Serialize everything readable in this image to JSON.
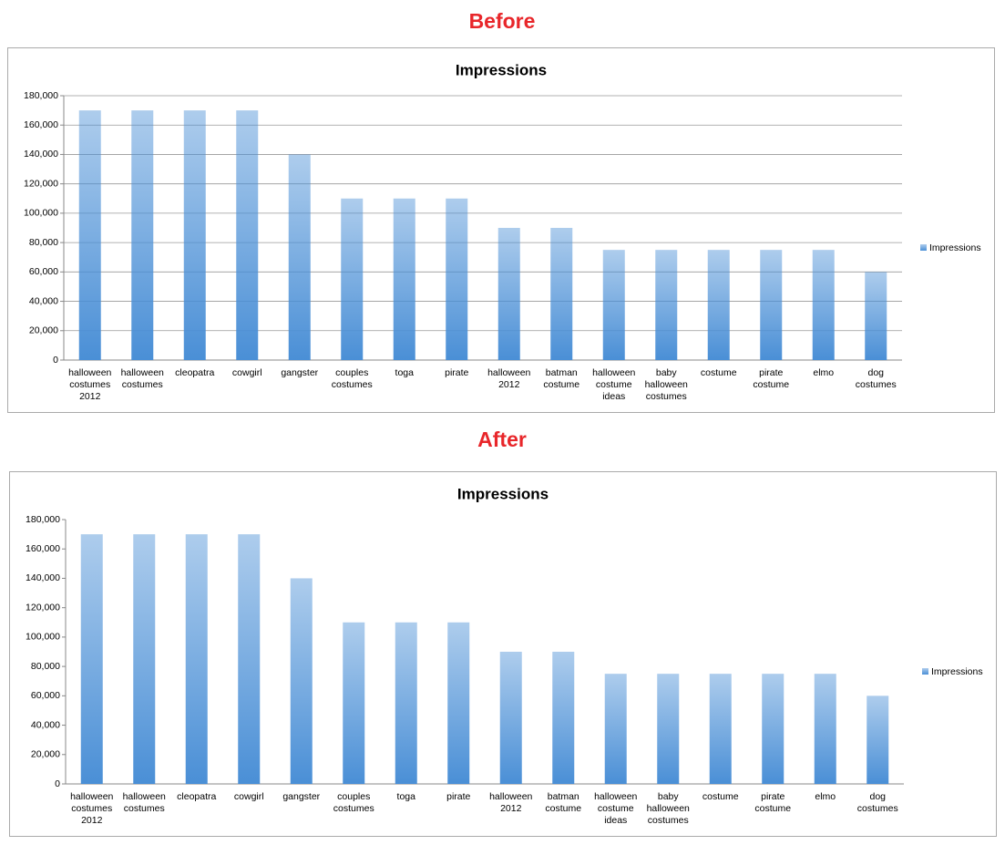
{
  "chart_data": [
    {
      "type": "bar",
      "heading": "Before",
      "title": "Impressions",
      "categories": [
        "halloween costumes 2012",
        "halloween costumes",
        "cleopatra",
        "cowgirl",
        "gangster",
        "couples costumes",
        "toga",
        "pirate",
        "halloween 2012",
        "batman costume",
        "halloween costume ideas",
        "baby halloween costumes",
        "costume",
        "pirate costume",
        "elmo",
        "dog costumes"
      ],
      "series": [
        {
          "name": "Impressions",
          "color": "#4a8fd6",
          "values": [
            170000,
            170000,
            170000,
            170000,
            140000,
            110000,
            110000,
            110000,
            90000,
            90000,
            75000,
            75000,
            75000,
            75000,
            75000,
            60000
          ]
        }
      ],
      "ylim": [
        0,
        180000
      ],
      "yticks": [
        0,
        {
          "value": 20000,
          "label": "20,000"
        },
        {
          "value": 40000,
          "label": "40,000"
        },
        {
          "value": 60000,
          "label": "60,000"
        },
        {
          "value": 80000,
          "label": "80,000"
        },
        {
          "value": 100000,
          "label": "100,000"
        },
        {
          "value": 120000,
          "label": "120,000"
        },
        {
          "value": 140000,
          "label": "140,000"
        },
        {
          "value": 160000,
          "label": "160,000"
        },
        {
          "value": 180000,
          "label": "180,000"
        }
      ],
      "grid": true,
      "legend": "right"
    },
    {
      "type": "bar",
      "heading": "After",
      "title": "Impressions",
      "categories": [
        "halloween costumes 2012",
        "halloween costumes",
        "cleopatra",
        "cowgirl",
        "gangster",
        "couples costumes",
        "toga",
        "pirate",
        "halloween 2012",
        "batman costume",
        "halloween costume ideas",
        "baby halloween costumes",
        "costume",
        "pirate costume",
        "elmo",
        "dog costumes"
      ],
      "series": [
        {
          "name": "Impressions",
          "color": "#4a8fd6",
          "values": [
            170000,
            170000,
            170000,
            170000,
            140000,
            110000,
            110000,
            110000,
            90000,
            90000,
            75000,
            75000,
            75000,
            75000,
            75000,
            60000
          ]
        }
      ],
      "ylim": [
        0,
        180000
      ],
      "yticks": [
        0,
        {
          "value": 20000,
          "label": "20,000"
        },
        {
          "value": 40000,
          "label": "40,000"
        },
        {
          "value": 60000,
          "label": "60,000"
        },
        {
          "value": 80000,
          "label": "80,000"
        },
        {
          "value": 100000,
          "label": "100,000"
        },
        {
          "value": 120000,
          "label": "120,000"
        },
        {
          "value": 140000,
          "label": "140,000"
        },
        {
          "value": 160000,
          "label": "160,000"
        },
        {
          "value": 180000,
          "label": "180,000"
        }
      ],
      "grid": false,
      "legend": "right"
    }
  ]
}
